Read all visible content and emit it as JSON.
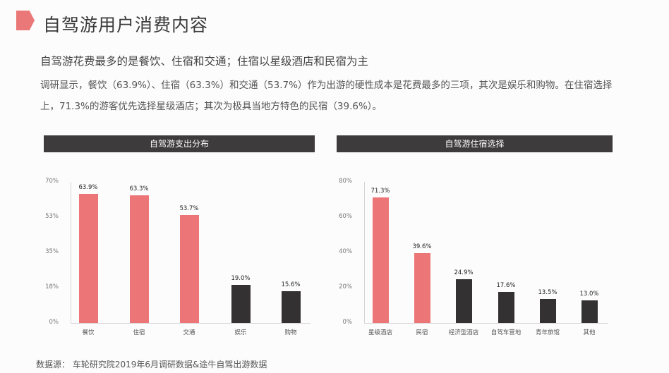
{
  "header": {
    "title": "自驾游用户消费内容",
    "accent_color": "#ea7878"
  },
  "subtitle": "自驾游花费最多的是餐饮、住宿和交通；住宿以星级酒店和民宿为主",
  "body_text": "调研显示，餐饮（63.9%）、住宿（63.3%）和交通（53.7%）作为出游的硬性成本是花费最多的三项，其次是娱乐和购物。在住宿选择上，71.3%的游客优先选择星级酒店；其次为极具当地方特色的民宿（39.6%）。",
  "source": "数据源：  车轮研究院2019年6月调研数据&途牛自驾出游数据",
  "colors": {
    "highlight": "#ec7677",
    "dark": "#333132",
    "header_bg": "#3d3b3c"
  },
  "chart_data": [
    {
      "type": "bar",
      "title": "自驾游支出分布",
      "categories": [
        "餐饮",
        "住宿",
        "交通",
        "娱乐",
        "购物"
      ],
      "values": [
        63.9,
        63.3,
        53.7,
        19.0,
        15.6
      ],
      "value_labels": [
        "63.9%",
        "63.3%",
        "53.7%",
        "19.0%",
        "15.6%"
      ],
      "bar_colors": [
        "#ec7677",
        "#ec7677",
        "#ec7677",
        "#333132",
        "#333132"
      ],
      "yticks": [
        "0%",
        "18%",
        "35%",
        "53%",
        "70%"
      ],
      "ylim": [
        0,
        70
      ],
      "xlabel": "",
      "ylabel": "",
      "grid": false,
      "legend": "none"
    },
    {
      "type": "bar",
      "title": "自驾游住宿选择",
      "categories": [
        "星级酒店",
        "民宿",
        "经济型酒店",
        "自驾车营地",
        "青年旅馆",
        "其他"
      ],
      "values": [
        71.3,
        39.6,
        24.9,
        17.6,
        13.5,
        13.0
      ],
      "value_labels": [
        "71.3%",
        "39.6%",
        "24.9%",
        "17.6%",
        "13.5%",
        "13.0%"
      ],
      "bar_colors": [
        "#ec7677",
        "#ec7677",
        "#333132",
        "#333132",
        "#333132",
        "#333132"
      ],
      "yticks": [
        "0%",
        "20%",
        "40%",
        "60%",
        "80%"
      ],
      "ylim": [
        0,
        80
      ],
      "xlabel": "",
      "ylabel": "",
      "grid": false,
      "legend": "none"
    }
  ]
}
